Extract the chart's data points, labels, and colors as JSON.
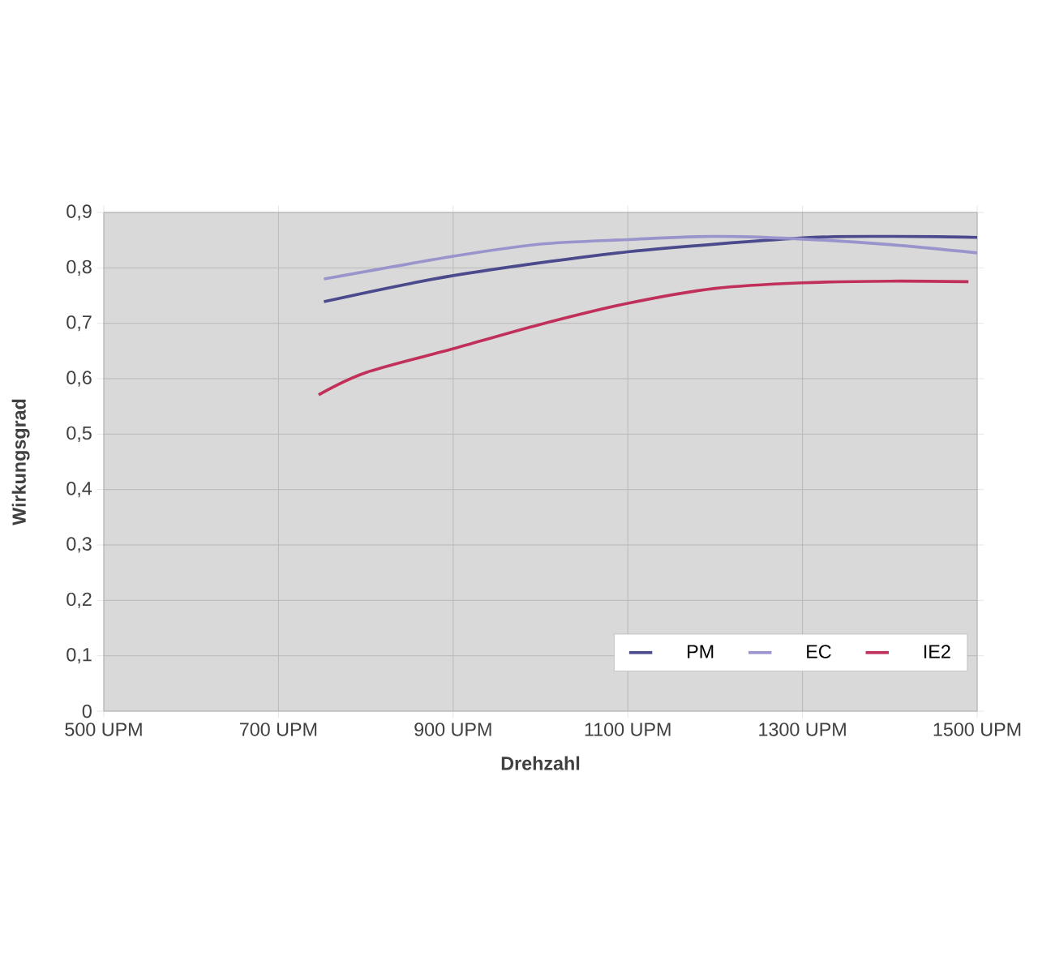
{
  "chart_data": {
    "type": "line",
    "xlabel": "Drehzahl",
    "ylabel": "Wirkungsgrad",
    "xlim": [
      500,
      1500
    ],
    "ylim": [
      0,
      0.9
    ],
    "xticks": [
      {
        "value": 500,
        "label": "500 UPM"
      },
      {
        "value": 700,
        "label": "700 UPM"
      },
      {
        "value": 900,
        "label": "900 UPM"
      },
      {
        "value": 1100,
        "label": "1100 UPM"
      },
      {
        "value": 1300,
        "label": "1300 UPM"
      },
      {
        "value": 1500,
        "label": "1500 UPM"
      }
    ],
    "yticks": [
      0,
      {
        "value": 0.1,
        "label": "0,1"
      },
      {
        "value": 0.2,
        "label": "0,2"
      },
      {
        "value": 0.3,
        "label": "0,3"
      },
      {
        "value": 0.4,
        "label": "0,4"
      },
      {
        "value": 0.5,
        "label": "0,5"
      },
      {
        "value": 0.6,
        "label": "0,6"
      },
      {
        "value": 0.7,
        "label": "0,7"
      },
      {
        "value": 0.8,
        "label": "0,8"
      },
      {
        "value": 0.9,
        "label": "0,9"
      }
    ],
    "grid": true,
    "legend": "bottom right",
    "marker": "none",
    "line_style": "solid",
    "series": [
      {
        "name": "PM",
        "color": "#4a4a8c",
        "x": [
          752,
          900,
          1100,
          1300,
          1400,
          1500
        ],
        "values": [
          0.739,
          0.786,
          0.829,
          0.854,
          0.857,
          0.855
        ]
      },
      {
        "name": "EC",
        "color": "#9a94cc",
        "x": [
          752,
          900,
          1000,
          1100,
          1200,
          1300,
          1400,
          1500
        ],
        "values": [
          0.78,
          0.821,
          0.843,
          0.851,
          0.857,
          0.852,
          0.842,
          0.827
        ]
      },
      {
        "name": "IE2",
        "color": "#c0305a",
        "x": [
          746,
          800,
          900,
          1000,
          1100,
          1200,
          1300,
          1400,
          1490
        ],
        "values": [
          0.571,
          0.611,
          0.654,
          0.698,
          0.736,
          0.763,
          0.773,
          0.776,
          0.775
        ]
      }
    ]
  }
}
